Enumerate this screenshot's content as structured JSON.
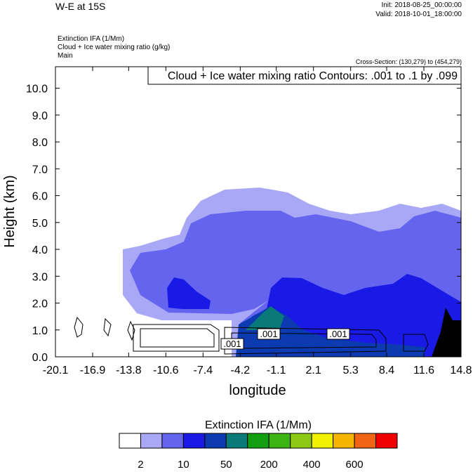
{
  "chart_data": {
    "type": "contour",
    "title": "W-E at 15S",
    "init": "Init: 2018-08-25_00:00:00",
    "valid": "Valid: 2018-10-01_18:00:00",
    "field_labels": [
      "Extinction IFA   (1/Mm)",
      "Cloud + Ice water mixing ratio   (g/kg)",
      "Main"
    ],
    "cross_section": "Cross-Section: (130,279) to (454,279)",
    "contour_info": "Cloud + Ice water mixing ratio Contours: .001 to .1 by .099",
    "contour_labels": [
      ".001",
      ".001",
      ".001"
    ],
    "x_label": "longitude",
    "y_label": "Height (km)",
    "xlim": [
      -20.1,
      14.8
    ],
    "xticks": [
      -20.1,
      -16.9,
      -13.8,
      -10.6,
      -7.4,
      -4.2,
      -1.1,
      2.1,
      5.3,
      8.4,
      11.6,
      14.8
    ],
    "ylim": [
      0,
      10.8
    ],
    "yticks": [
      {
        "value": 0,
        "label": "0.0"
      },
      {
        "value": 1,
        "label": "1.0"
      },
      {
        "value": 2,
        "label": "2.0"
      },
      {
        "value": 3,
        "label": "3.0"
      },
      {
        "value": 4,
        "label": "4.0"
      },
      {
        "value": 5,
        "label": "5.0"
      },
      {
        "value": 6,
        "label": "6.0"
      },
      {
        "value": 7,
        "label": "7.0"
      },
      {
        "value": 8,
        "label": "8.0"
      },
      {
        "value": 9,
        "label": "9.0"
      },
      {
        "value": 10,
        "label": "10.0"
      }
    ],
    "colorbar": {
      "title": "Extinction IFA  (1/Mm)",
      "colors": [
        "#ffffff",
        "#a8a8f6",
        "#6464ee",
        "#1a1ae6",
        "#0c3ab0",
        "#0a7a78",
        "#12a012",
        "#3cb414",
        "#8cc814",
        "#f0f000",
        "#f5b400",
        "#f06414",
        "#f00000"
      ],
      "labels": [
        2,
        10,
        50,
        200,
        400,
        600
      ]
    }
  }
}
